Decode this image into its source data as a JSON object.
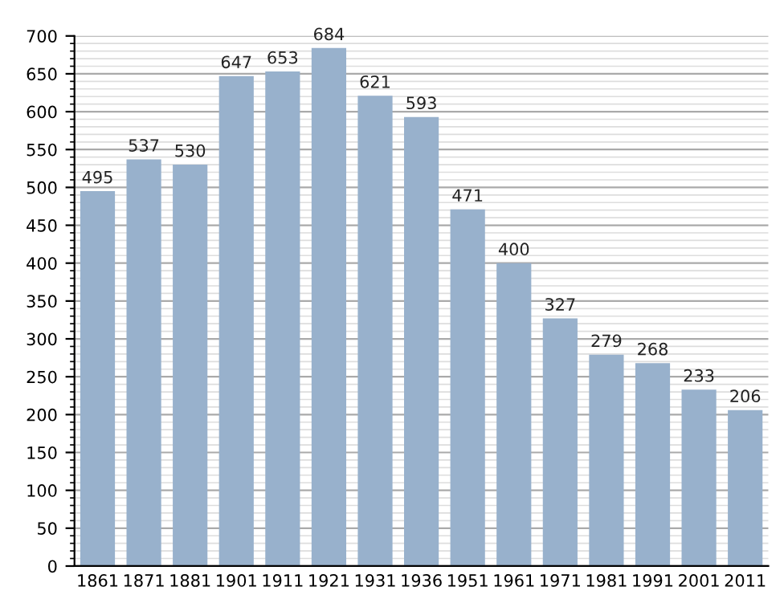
{
  "chart_data": {
    "type": "bar",
    "categories": [
      "1861",
      "1871",
      "1881",
      "1901",
      "1911",
      "1921",
      "1931",
      "1936",
      "1951",
      "1961",
      "1971",
      "1981",
      "1991",
      "2001",
      "2011"
    ],
    "values": [
      495,
      537,
      530,
      647,
      653,
      684,
      621,
      593,
      471,
      400,
      327,
      279,
      268,
      233,
      206
    ],
    "color": "#98b1cc",
    "ylim": [
      0,
      700
    ],
    "yticks": [
      0,
      50,
      100,
      150,
      200,
      250,
      300,
      350,
      400,
      450,
      500,
      550,
      600,
      650,
      700
    ],
    "grid": "y",
    "data_labels": true
  }
}
